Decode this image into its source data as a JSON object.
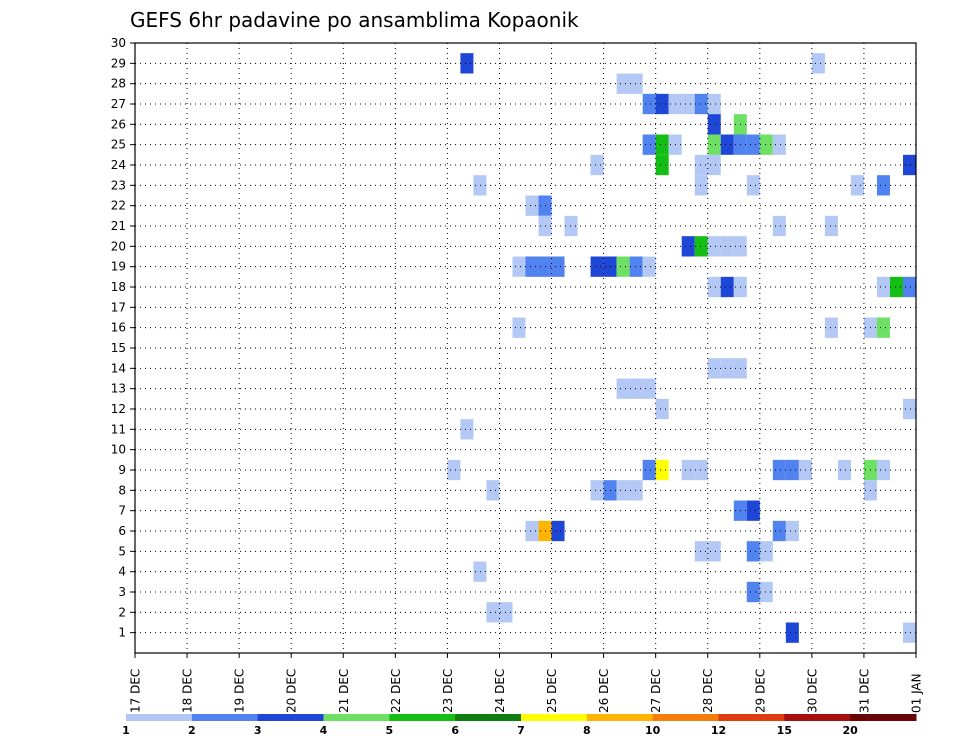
{
  "chart_data": {
    "type": "heatmap",
    "title": "GEFS 6hr padavine po ansamblima Kopaonik",
    "xlabel": "",
    "ylabel": "",
    "x_tick_labels": [
      "17 DEC",
      "18 DEC",
      "19 DEC",
      "20 DEC",
      "21 DEC",
      "22 DEC",
      "23 DEC",
      "24 DEC",
      "25 DEC",
      "26 DEC",
      "27 DEC",
      "28 DEC",
      "29 DEC",
      "30 DEC",
      "31 DEC",
      "01 JAN"
    ],
    "xlim": [
      0,
      60
    ],
    "x_unit": "6-hour steps from 17 DEC 00Z",
    "y_ticks": [
      1,
      2,
      3,
      4,
      5,
      6,
      7,
      8,
      9,
      10,
      11,
      12,
      13,
      14,
      15,
      16,
      17,
      18,
      19,
      20,
      21,
      22,
      23,
      24,
      25,
      26,
      27,
      28,
      29,
      30
    ],
    "ylim": [
      0,
      30
    ],
    "y_unit": "ensemble member",
    "grid": true,
    "colorbar": {
      "position": "bottom",
      "levels": [
        "1",
        "2",
        "3",
        "4",
        "5",
        "6",
        "7",
        "8",
        "10",
        "12",
        "15",
        "20"
      ],
      "colors": [
        "#b4c8f5",
        "#5082f0",
        "#1e46d7",
        "#6ee164",
        "#14be14",
        "#0f7d0f",
        "#ffff00",
        "#ffb400",
        "#f57d0a",
        "#e13c0f",
        "#a50f0f",
        "#690505"
      ]
    },
    "cells": [
      {
        "m": 29,
        "t": 25.5,
        "v": 3
      },
      {
        "m": 29,
        "t": 52.5,
        "v": 1
      },
      {
        "m": 28,
        "t": 37.5,
        "v": 1
      },
      {
        "m": 28,
        "t": 38.5,
        "v": 1
      },
      {
        "m": 27,
        "t": 39.5,
        "v": 2
      },
      {
        "m": 27,
        "t": 40.5,
        "v": 3
      },
      {
        "m": 27,
        "t": 41.5,
        "v": 1
      },
      {
        "m": 27,
        "t": 42.5,
        "v": 1
      },
      {
        "m": 27,
        "t": 43.5,
        "v": 2
      },
      {
        "m": 27,
        "t": 44.5,
        "v": 1
      },
      {
        "m": 26,
        "t": 44.5,
        "v": 3
      },
      {
        "m": 26,
        "t": 46.5,
        "v": 4
      },
      {
        "m": 25,
        "t": 39.5,
        "v": 2
      },
      {
        "m": 25,
        "t": 40.5,
        "v": 5
      },
      {
        "m": 25,
        "t": 41.5,
        "v": 1
      },
      {
        "m": 25,
        "t": 44.5,
        "v": 4
      },
      {
        "m": 25,
        "t": 45.5,
        "v": 3
      },
      {
        "m": 25,
        "t": 46.5,
        "v": 2
      },
      {
        "m": 25,
        "t": 47.5,
        "v": 2
      },
      {
        "m": 25,
        "t": 48.5,
        "v": 4
      },
      {
        "m": 25,
        "t": 49.5,
        "v": 1
      },
      {
        "m": 24,
        "t": 35.5,
        "v": 1
      },
      {
        "m": 24,
        "t": 40.5,
        "v": 5
      },
      {
        "m": 24,
        "t": 43.5,
        "v": 1
      },
      {
        "m": 24,
        "t": 44.5,
        "v": 1
      },
      {
        "m": 24,
        "t": 59.5,
        "v": 3
      },
      {
        "m": 23,
        "t": 26.5,
        "v": 1
      },
      {
        "m": 23,
        "t": 43.5,
        "v": 1
      },
      {
        "m": 23,
        "t": 47.5,
        "v": 1
      },
      {
        "m": 23,
        "t": 55.5,
        "v": 1
      },
      {
        "m": 23,
        "t": 57.5,
        "v": 2
      },
      {
        "m": 22,
        "t": 30.5,
        "v": 1
      },
      {
        "m": 22,
        "t": 31.5,
        "v": 2
      },
      {
        "m": 21,
        "t": 31.5,
        "v": 1
      },
      {
        "m": 21,
        "t": 33.5,
        "v": 1
      },
      {
        "m": 21,
        "t": 49.5,
        "v": 1
      },
      {
        "m": 21,
        "t": 53.5,
        "v": 1
      },
      {
        "m": 20,
        "t": 42.5,
        "v": 3
      },
      {
        "m": 20,
        "t": 43.5,
        "v": 5
      },
      {
        "m": 20,
        "t": 44.5,
        "v": 1
      },
      {
        "m": 20,
        "t": 45.5,
        "v": 1
      },
      {
        "m": 20,
        "t": 46.5,
        "v": 1
      },
      {
        "m": 19,
        "t": 29.5,
        "v": 1
      },
      {
        "m": 19,
        "t": 30.5,
        "v": 2
      },
      {
        "m": 19,
        "t": 31.5,
        "v": 2
      },
      {
        "m": 19,
        "t": 32.5,
        "v": 2
      },
      {
        "m": 19,
        "t": 35.5,
        "v": 3
      },
      {
        "m": 19,
        "t": 36.5,
        "v": 3
      },
      {
        "m": 19,
        "t": 37.5,
        "v": 4
      },
      {
        "m": 19,
        "t": 38.5,
        "v": 2
      },
      {
        "m": 19,
        "t": 39.5,
        "v": 1
      },
      {
        "m": 18,
        "t": 44.5,
        "v": 1
      },
      {
        "m": 18,
        "t": 45.5,
        "v": 3
      },
      {
        "m": 18,
        "t": 46.5,
        "v": 1
      },
      {
        "m": 18,
        "t": 57.5,
        "v": 1
      },
      {
        "m": 18,
        "t": 58.5,
        "v": 5
      },
      {
        "m": 18,
        "t": 59.5,
        "v": 2
      },
      {
        "m": 16,
        "t": 29.5,
        "v": 1
      },
      {
        "m": 16,
        "t": 53.5,
        "v": 1
      },
      {
        "m": 16,
        "t": 56.5,
        "v": 1
      },
      {
        "m": 16,
        "t": 57.5,
        "v": 4
      },
      {
        "m": 14,
        "t": 44.5,
        "v": 1
      },
      {
        "m": 14,
        "t": 45.5,
        "v": 1
      },
      {
        "m": 14,
        "t": 46.5,
        "v": 1
      },
      {
        "m": 13,
        "t": 37.5,
        "v": 1
      },
      {
        "m": 13,
        "t": 38.5,
        "v": 1
      },
      {
        "m": 13,
        "t": 39.5,
        "v": 1
      },
      {
        "m": 12,
        "t": 40.5,
        "v": 1
      },
      {
        "m": 12,
        "t": 59.5,
        "v": 1
      },
      {
        "m": 11,
        "t": 25.5,
        "v": 1
      },
      {
        "m": 9,
        "t": 24.5,
        "v": 1
      },
      {
        "m": 9,
        "t": 39.5,
        "v": 2
      },
      {
        "m": 9,
        "t": 40.5,
        "v": 7
      },
      {
        "m": 9,
        "t": 42.5,
        "v": 1
      },
      {
        "m": 9,
        "t": 43.5,
        "v": 1
      },
      {
        "m": 9,
        "t": 49.5,
        "v": 2
      },
      {
        "m": 9,
        "t": 50.5,
        "v": 2
      },
      {
        "m": 9,
        "t": 51.5,
        "v": 1
      },
      {
        "m": 9,
        "t": 54.5,
        "v": 1
      },
      {
        "m": 9,
        "t": 56.5,
        "v": 4
      },
      {
        "m": 9,
        "t": 57.5,
        "v": 1
      },
      {
        "m": 8,
        "t": 27.5,
        "v": 1
      },
      {
        "m": 8,
        "t": 35.5,
        "v": 1
      },
      {
        "m": 8,
        "t": 36.5,
        "v": 2
      },
      {
        "m": 8,
        "t": 37.5,
        "v": 1
      },
      {
        "m": 8,
        "t": 38.5,
        "v": 1
      },
      {
        "m": 8,
        "t": 56.5,
        "v": 1
      },
      {
        "m": 7,
        "t": 46.5,
        "v": 2
      },
      {
        "m": 7,
        "t": 47.5,
        "v": 3
      },
      {
        "m": 6,
        "t": 30.5,
        "v": 1
      },
      {
        "m": 6,
        "t": 31.5,
        "v": 8
      },
      {
        "m": 6,
        "t": 32.5,
        "v": 3
      },
      {
        "m": 6,
        "t": 49.5,
        "v": 2
      },
      {
        "m": 6,
        "t": 50.5,
        "v": 1
      },
      {
        "m": 5,
        "t": 43.5,
        "v": 1
      },
      {
        "m": 5,
        "t": 44.5,
        "v": 1
      },
      {
        "m": 5,
        "t": 47.5,
        "v": 2
      },
      {
        "m": 5,
        "t": 48.5,
        "v": 1
      },
      {
        "m": 4,
        "t": 26.5,
        "v": 1
      },
      {
        "m": 3,
        "t": 47.5,
        "v": 2
      },
      {
        "m": 3,
        "t": 48.5,
        "v": 1
      },
      {
        "m": 2,
        "t": 27.5,
        "v": 1
      },
      {
        "m": 2,
        "t": 28.5,
        "v": 1
      },
      {
        "m": 1,
        "t": 50.5,
        "v": 3
      },
      {
        "m": 1,
        "t": 59.5,
        "v": 1
      }
    ]
  }
}
